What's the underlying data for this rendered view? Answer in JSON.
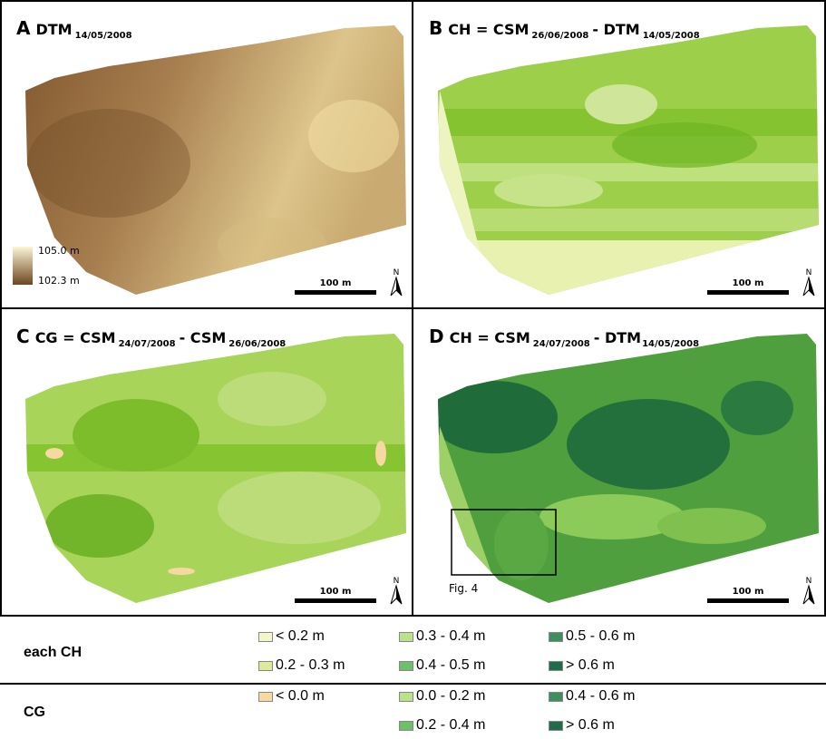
{
  "panels": [
    {
      "letter": "A",
      "title": [
        {
          "text": "DTM"
        },
        {
          "sub": "14/05/2008"
        }
      ],
      "legend": {
        "high": "105.0 m",
        "low": "102.3 m"
      },
      "scale_bar": "100 m",
      "north": "N"
    },
    {
      "letter": "B",
      "title": [
        {
          "text": "CH = CSM"
        },
        {
          "sub": "26/06/2008"
        },
        {
          "text": "- DTM"
        },
        {
          "sub": "14/05/2008"
        }
      ],
      "scale_bar": "100 m",
      "north": "N"
    },
    {
      "letter": "C",
      "title": [
        {
          "text": "CG = CSM"
        },
        {
          "sub": "24/07/2008"
        },
        {
          "text": "- CSM"
        },
        {
          "sub": "26/06/2008"
        }
      ],
      "scale_bar": "100 m",
      "north": "N"
    },
    {
      "letter": "D",
      "title": [
        {
          "text": "CH = CSM"
        },
        {
          "sub": "24/07/2008"
        },
        {
          "text": "- DTM"
        },
        {
          "sub": "14/05/2008"
        }
      ],
      "inset_label": "Fig. 4",
      "scale_bar": "100 m",
      "north": "N"
    }
  ],
  "legend": {
    "rows": [
      {
        "label": "each CH",
        "items": [
          {
            "label": "< 0.2 m",
            "color": "#f3f6c8"
          },
          {
            "label": "0.2 - 0.3 m",
            "color": "#dfe99a"
          },
          {
            "label": "0.3 - 0.4 m",
            "color": "#b9e28a"
          },
          {
            "label": "0.4 - 0.5 m",
            "color": "#6dbf6a"
          },
          {
            "label": "0.5 - 0.6 m",
            "color": "#3f8f5e"
          },
          {
            "label": "> 0.6 m",
            "color": "#1f6b4a"
          }
        ]
      },
      {
        "label": "CG",
        "items": [
          {
            "label": "< 0.0 m",
            "color": "#f5d9a0"
          },
          {
            "label": "0.0 - 0.2 m",
            "color": "#b9e28a"
          },
          {
            "label": "0.2 - 0.4 m",
            "color": "#6dbf6a"
          },
          {
            "label": "0.4 - 0.6 m",
            "color": "#3f8f5e"
          },
          {
            "label": "> 0.6 m",
            "color": "#1f6b4a"
          }
        ]
      }
    ]
  }
}
